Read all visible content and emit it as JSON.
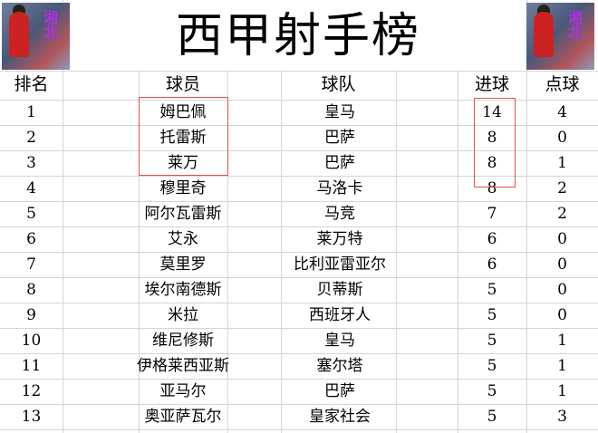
{
  "title": "西甲射手榜",
  "headers": {
    "rank": "排名",
    "player": "球员",
    "team": "球队",
    "goals": "进球",
    "penalties": "点球"
  },
  "image_text": "湘北",
  "highlight_color": "#e05050",
  "rows": [
    {
      "rank": "1",
      "player": "姆巴佩",
      "team": "皇马",
      "goals": "14",
      "penalties": "4"
    },
    {
      "rank": "2",
      "player": "托雷斯",
      "team": "巴萨",
      "goals": "8",
      "penalties": "0"
    },
    {
      "rank": "3",
      "player": "莱万",
      "team": "巴萨",
      "goals": "8",
      "penalties": "1"
    },
    {
      "rank": "4",
      "player": "穆里奇",
      "team": "马洛卡",
      "goals": "8",
      "penalties": "2"
    },
    {
      "rank": "5",
      "player": "阿尔瓦雷斯",
      "team": "马竞",
      "goals": "7",
      "penalties": "2"
    },
    {
      "rank": "6",
      "player": "艾永",
      "team": "莱万特",
      "goals": "6",
      "penalties": "0"
    },
    {
      "rank": "7",
      "player": "莫里罗",
      "team": "比利亚雷亚尔",
      "goals": "6",
      "penalties": "0"
    },
    {
      "rank": "8",
      "player": "埃尔南德斯",
      "team": "贝蒂斯",
      "goals": "5",
      "penalties": "0"
    },
    {
      "rank": "9",
      "player": "米拉",
      "team": "西班牙人",
      "goals": "5",
      "penalties": "0"
    },
    {
      "rank": "10",
      "player": "维尼修斯",
      "team": "皇马",
      "goals": "5",
      "penalties": "1"
    },
    {
      "rank": "11",
      "player": "伊格莱西亚斯",
      "team": "塞尔塔",
      "goals": "5",
      "penalties": "1"
    },
    {
      "rank": "12",
      "player": "亚马尔",
      "team": "巴萨",
      "goals": "5",
      "penalties": "1"
    },
    {
      "rank": "13",
      "player": "奥亚萨瓦尔",
      "team": "皇家社会",
      "goals": "5",
      "penalties": "3"
    }
  ]
}
